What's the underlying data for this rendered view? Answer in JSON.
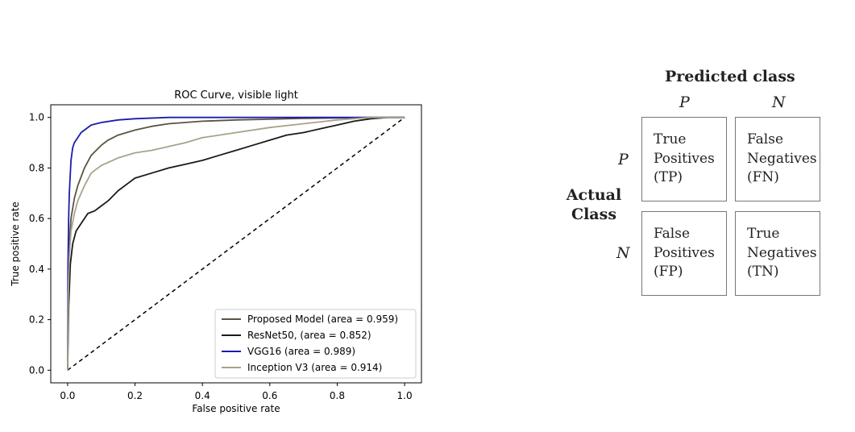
{
  "chart_data": [
    {
      "type": "line",
      "title": "ROC Curve, visible light",
      "xlabel": "False positive rate",
      "ylabel": "True positive rate",
      "xlim": [
        -0.05,
        1.05
      ],
      "ylim": [
        -0.05,
        1.05
      ],
      "xticks": [
        "0.0",
        "0.2",
        "0.4",
        "0.6",
        "0.8",
        "1.0"
      ],
      "yticks": [
        "0.0",
        "0.2",
        "0.4",
        "0.6",
        "0.8",
        "1.0"
      ],
      "legend_position": "bottom-right",
      "grid": false,
      "baseline": {
        "x": [
          0,
          1
        ],
        "y": [
          0,
          1
        ],
        "style": "dashed",
        "color": "#000000"
      },
      "series": [
        {
          "name": "Proposed Model (area = 0.959)",
          "color": "#5a5440",
          "x": [
            0,
            0.002,
            0.005,
            0.01,
            0.02,
            0.03,
            0.05,
            0.07,
            0.1,
            0.12,
            0.15,
            0.2,
            0.25,
            0.3,
            0.4,
            0.5,
            0.6,
            0.7,
            0.8,
            0.9,
            1.0
          ],
          "y": [
            0,
            0.35,
            0.5,
            0.6,
            0.68,
            0.73,
            0.8,
            0.85,
            0.89,
            0.91,
            0.93,
            0.95,
            0.965,
            0.975,
            0.985,
            0.99,
            0.993,
            0.996,
            0.998,
            1.0,
            1.0
          ]
        },
        {
          "name": "ResNet50, (area = 0.852)",
          "color": "#1a1a1a",
          "x": [
            0,
            0.003,
            0.008,
            0.015,
            0.025,
            0.04,
            0.06,
            0.08,
            0.1,
            0.12,
            0.15,
            0.18,
            0.2,
            0.25,
            0.3,
            0.35,
            0.4,
            0.45,
            0.5,
            0.55,
            0.6,
            0.65,
            0.7,
            0.75,
            0.8,
            0.85,
            0.9,
            0.95,
            1.0
          ],
          "y": [
            0,
            0.25,
            0.42,
            0.5,
            0.55,
            0.58,
            0.62,
            0.63,
            0.65,
            0.67,
            0.71,
            0.74,
            0.76,
            0.78,
            0.8,
            0.815,
            0.83,
            0.85,
            0.87,
            0.89,
            0.91,
            0.93,
            0.94,
            0.955,
            0.97,
            0.985,
            0.995,
            1.0,
            1.0
          ]
        },
        {
          "name": "VGG16 (area = 0.989)",
          "color": "#1c1cb0",
          "x": [
            0,
            0.001,
            0.003,
            0.005,
            0.008,
            0.01,
            0.015,
            0.02,
            0.03,
            0.04,
            0.05,
            0.07,
            0.1,
            0.15,
            0.2,
            0.3,
            0.4,
            0.6,
            1.0
          ],
          "y": [
            0,
            0.4,
            0.6,
            0.7,
            0.78,
            0.83,
            0.88,
            0.9,
            0.92,
            0.94,
            0.95,
            0.97,
            0.98,
            0.99,
            0.995,
            1.0,
            1.0,
            1.0,
            1.0
          ]
        },
        {
          "name": "Inception V3 (area = 0.914)",
          "color": "#a8a388",
          "x": [
            0,
            0.002,
            0.005,
            0.01,
            0.02,
            0.03,
            0.05,
            0.07,
            0.1,
            0.15,
            0.2,
            0.25,
            0.3,
            0.35,
            0.4,
            0.5,
            0.6,
            0.7,
            0.8,
            0.9,
            1.0
          ],
          "y": [
            0,
            0.3,
            0.45,
            0.55,
            0.62,
            0.67,
            0.73,
            0.78,
            0.81,
            0.84,
            0.86,
            0.87,
            0.885,
            0.9,
            0.92,
            0.94,
            0.96,
            0.975,
            0.99,
            1.0,
            1.0
          ]
        }
      ]
    },
    {
      "type": "table",
      "title": "Predicted class",
      "columns": [
        "P",
        "N"
      ],
      "rows": [
        "P",
        "N"
      ],
      "row_axis_label": "Actual Class",
      "cells": [
        [
          [
            "True",
            "Positives",
            "(TP)"
          ],
          [
            "False",
            "Negatives",
            "(FN)"
          ]
        ],
        [
          [
            "False",
            "Positives",
            "(FP)"
          ],
          [
            "True",
            "Negatives",
            "(TN)"
          ]
        ]
      ]
    }
  ]
}
